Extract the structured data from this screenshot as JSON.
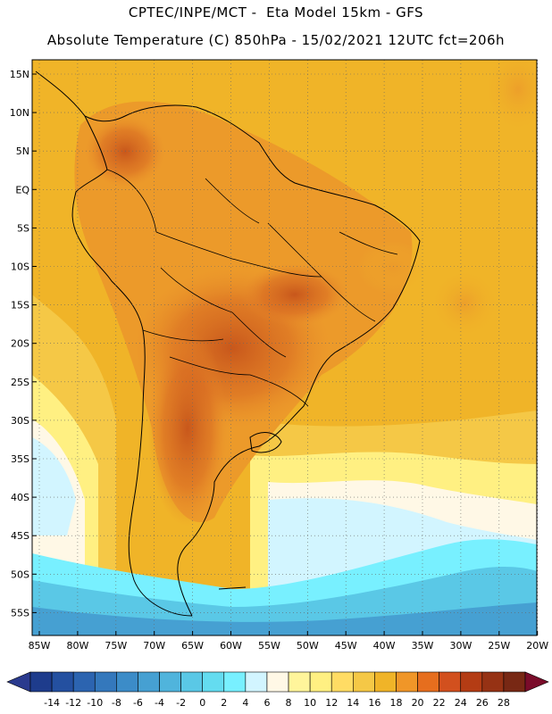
{
  "title_line1": "CPTEC/INPE/MCT -  Eta Model 15km - GFS",
  "title_line2": "Absolute Temperature (C) 850hPa - 15/02/2021 12UTC fct=206h",
  "map": {
    "lat_labels": [
      "15N",
      "10N",
      "5N",
      "EQ",
      "5S",
      "10S",
      "15S",
      "20S",
      "25S",
      "30S",
      "35S",
      "40S",
      "45S",
      "50S",
      "55S"
    ],
    "lon_labels": [
      "85W",
      "80W",
      "75W",
      "70W",
      "65W",
      "60W",
      "55W",
      "50W",
      "45W",
      "40W",
      "35W",
      "30W",
      "25W",
      "20W"
    ]
  },
  "colorbar": {
    "labels": [
      "-14",
      "-12",
      "-10",
      "-8",
      "-6",
      "-4",
      "-2",
      "0",
      "2",
      "4",
      "6",
      "8",
      "10",
      "12",
      "14",
      "16",
      "18",
      "20",
      "22",
      "24",
      "26",
      "28"
    ],
    "colors": [
      "#1e3c8c",
      "#2450a0",
      "#2c64b0",
      "#3478bc",
      "#3c8cc8",
      "#46a0d2",
      "#50b4dc",
      "#5ac8e6",
      "#64dcf0",
      "#78f0ff",
      "#d2f5ff",
      "#fff8e6",
      "#fff59b",
      "#fff082",
      "#ffdc64",
      "#f5c846",
      "#f0b428",
      "#f09628",
      "#e66e1e",
      "#d2501e",
      "#b43c14",
      "#963214",
      "#782814"
    ],
    "min_color": "#2a3a8e",
    "max_color": "#7a0c2a"
  }
}
